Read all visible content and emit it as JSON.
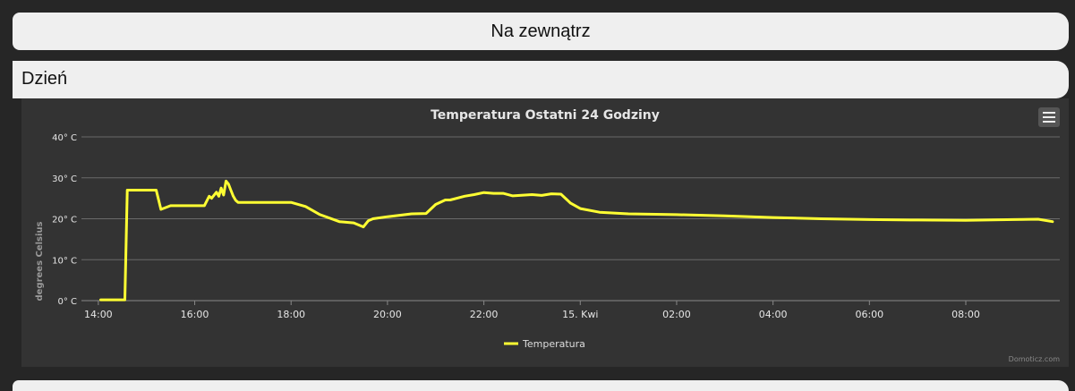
{
  "page": {
    "title": "Na zewnątrz",
    "section": "Dzień",
    "credit": "Domoticz.com"
  },
  "chart_data": {
    "type": "line",
    "title": "Temperatura Ostatni 24 Godziny",
    "ylabel": "degrees Celsius",
    "ylim": [
      0,
      40
    ],
    "yticks": [
      0,
      10,
      20,
      30,
      40
    ],
    "ytick_labels": [
      "0° C",
      "10° C",
      "20° C",
      "30° C",
      "40° C"
    ],
    "xlim": [
      13.65,
      33.95
    ],
    "xticks": [
      14,
      16,
      18,
      20,
      22,
      24,
      26,
      28,
      30,
      32
    ],
    "xtick_labels": [
      "14:00",
      "16:00",
      "18:00",
      "20:00",
      "22:00",
      "15. Kwi",
      "02:00",
      "04:00",
      "06:00",
      "08:00"
    ],
    "grid": true,
    "legend_position": "bottom-center",
    "series": [
      {
        "name": "Temperatura",
        "color": "#ffff33",
        "x": [
          14.05,
          14.5,
          14.55,
          14.6,
          14.65,
          15.2,
          15.3,
          15.5,
          15.6,
          16.2,
          16.3,
          16.35,
          16.45,
          16.5,
          16.55,
          16.6,
          16.65,
          16.7,
          16.75,
          16.8,
          16.85,
          16.9,
          17.0,
          18.0,
          18.3,
          18.6,
          19.0,
          19.3,
          19.5,
          19.6,
          19.7,
          20.0,
          20.5,
          20.8,
          21.0,
          21.2,
          21.3,
          21.6,
          21.8,
          22.0,
          22.2,
          22.4,
          22.6,
          23.0,
          23.2,
          23.4,
          23.6,
          23.8,
          24.0,
          24.4,
          25.0,
          26.0,
          27.0,
          28.0,
          29.0,
          30.0,
          31.0,
          32.0,
          33.0,
          33.5,
          33.8
        ],
        "y": [
          0.2,
          0.2,
          0.2,
          27,
          27,
          27,
          22.3,
          23.2,
          23.2,
          23.2,
          25.5,
          25.0,
          26.5,
          25.5,
          27.5,
          25.8,
          29.2,
          28.5,
          27.0,
          25.5,
          24.5,
          24.0,
          24.0,
          24.0,
          23.0,
          21.0,
          19.3,
          19.0,
          18.0,
          19.5,
          20.0,
          20.5,
          21.2,
          21.3,
          23.5,
          24.6,
          24.6,
          25.5,
          25.9,
          26.4,
          26.2,
          26.2,
          25.6,
          25.9,
          25.7,
          26.1,
          26.0,
          23.8,
          22.5,
          21.6,
          21.2,
          21.0,
          20.7,
          20.3,
          20.0,
          19.8,
          19.7,
          19.6,
          19.8,
          19.9,
          19.3
        ]
      }
    ]
  }
}
